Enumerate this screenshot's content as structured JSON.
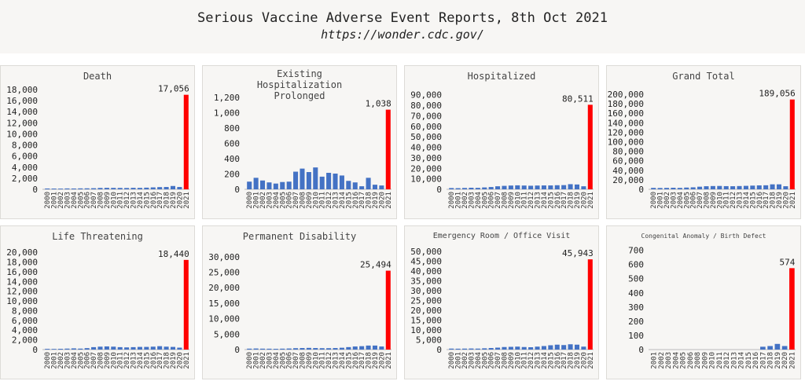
{
  "title": "Serious Vaccine Adverse Event Reports, 8th Oct 2021",
  "subtitle": "https://wonder.cdc.gov/",
  "colors": {
    "normal": "#4472c4",
    "highlight": "#ff0000",
    "panel_bg": "#f7f6f4"
  },
  "chart_data": [
    {
      "type": "bar",
      "title": [
        "Death"
      ],
      "categories": [
        "2000",
        "2001",
        "2002",
        "2003",
        "2004",
        "2005",
        "2006",
        "2007",
        "2008",
        "2009",
        "2010",
        "2011",
        "2012",
        "2013",
        "2014",
        "2015",
        "2016",
        "2017",
        "2018",
        "2019",
        "2020",
        "2021"
      ],
      "values": [
        150,
        140,
        130,
        160,
        150,
        170,
        180,
        200,
        250,
        270,
        260,
        250,
        240,
        270,
        260,
        300,
        350,
        400,
        420,
        600,
        420,
        17056
      ],
      "highlight_label": "17,056",
      "ylim": [
        0,
        18000
      ],
      "yticks": [
        0,
        2000,
        4000,
        6000,
        8000,
        10000,
        12000,
        14000,
        16000,
        18000
      ],
      "ytick_labels": [
        "0",
        "2,000",
        "4,000",
        "6,000",
        "8,000",
        "10,000",
        "12,000",
        "14,000",
        "16,000",
        "18,000"
      ]
    },
    {
      "type": "bar",
      "title": [
        "Existing",
        "Hospitalization",
        "Prolonged"
      ],
      "categories": [
        "2000",
        "2001",
        "2002",
        "2003",
        "2004",
        "2005",
        "2006",
        "2007",
        "2008",
        "2009",
        "2010",
        "2011",
        "2012",
        "2013",
        "2014",
        "2015",
        "2016",
        "2017",
        "2018",
        "2019",
        "2020",
        "2021"
      ],
      "values": [
        100,
        150,
        115,
        90,
        75,
        95,
        100,
        230,
        270,
        225,
        285,
        165,
        215,
        205,
        180,
        110,
        90,
        40,
        150,
        60,
        50,
        1038
      ],
      "highlight_label": "1,038",
      "ylim": [
        0,
        1300
      ],
      "yticks": [
        0,
        200,
        400,
        600,
        800,
        1000,
        1200
      ],
      "ytick_labels": [
        "0",
        "200",
        "400",
        "600",
        "800",
        "1,000",
        "1,200"
      ]
    },
    {
      "type": "bar",
      "title": [
        "Hospitalized"
      ],
      "categories": [
        "2000",
        "2001",
        "2002",
        "2003",
        "2004",
        "2005",
        "2006",
        "2007",
        "2008",
        "2009",
        "2010",
        "2011",
        "2012",
        "2013",
        "2014",
        "2015",
        "2016",
        "2017",
        "2018",
        "2019",
        "2020",
        "2021"
      ],
      "values": [
        1200,
        1100,
        1300,
        1500,
        1400,
        1800,
        2200,
        2900,
        3300,
        3600,
        3800,
        3600,
        3400,
        3600,
        3700,
        3700,
        3900,
        4000,
        4900,
        4600,
        2900,
        80511
      ],
      "highlight_label": "80,511",
      "ylim": [
        0,
        95000
      ],
      "yticks": [
        0,
        10000,
        20000,
        30000,
        40000,
        50000,
        60000,
        70000,
        80000,
        90000
      ],
      "ytick_labels": [
        "0",
        "10,000",
        "20,000",
        "30,000",
        "40,000",
        "50,000",
        "60,000",
        "70,000",
        "80,000",
        "90,000"
      ]
    },
    {
      "type": "bar",
      "title": [
        "Grand Total"
      ],
      "categories": [
        "2000",
        "2001",
        "2002",
        "2003",
        "2004",
        "2005",
        "2006",
        "2007",
        "2008",
        "2009",
        "2010",
        "2011",
        "2012",
        "2013",
        "2014",
        "2015",
        "2016",
        "2017",
        "2018",
        "2019",
        "2020",
        "2021"
      ],
      "values": [
        3000,
        2800,
        3000,
        3300,
        3000,
        3700,
        4200,
        5500,
        6500,
        6900,
        7100,
        6700,
        6500,
        6900,
        7300,
        7800,
        8300,
        8500,
        10500,
        10500,
        6500,
        189056
      ],
      "highlight_label": "189,056",
      "ylim": [
        0,
        210000
      ],
      "yticks": [
        0,
        20000,
        40000,
        60000,
        80000,
        100000,
        120000,
        140000,
        160000,
        180000,
        200000
      ],
      "ytick_labels": [
        "0",
        "20,000",
        "40,000",
        "60,000",
        "80,000",
        "100,000",
        "120,000",
        "140,000",
        "160,000",
        "180,000",
        "200,000"
      ]
    },
    {
      "type": "bar",
      "title": [
        "Life Threatening"
      ],
      "categories": [
        "2000",
        "2001",
        "2002",
        "2003",
        "2004",
        "2005",
        "2006",
        "2007",
        "2008",
        "2009",
        "2010",
        "2011",
        "2012",
        "2013",
        "2014",
        "2015",
        "2016",
        "2017",
        "2018",
        "2019",
        "2020",
        "2021"
      ],
      "values": [
        150,
        140,
        160,
        200,
        250,
        200,
        300,
        500,
        600,
        650,
        600,
        500,
        450,
        500,
        550,
        550,
        600,
        700,
        600,
        550,
        400,
        18440
      ],
      "highlight_label": "18,440",
      "ylim": [
        0,
        21000
      ],
      "yticks": [
        0,
        2000,
        4000,
        6000,
        8000,
        10000,
        12000,
        14000,
        16000,
        18000,
        20000
      ],
      "ytick_labels": [
        "0",
        "2,000",
        "4,000",
        "6,000",
        "8,000",
        "10,000",
        "12,000",
        "14,000",
        "16,000",
        "18,000",
        "20,000"
      ]
    },
    {
      "type": "bar",
      "title": [
        "Permanent Disability"
      ],
      "categories": [
        "2000",
        "2001",
        "2002",
        "2003",
        "2004",
        "2005",
        "2006",
        "2007",
        "2008",
        "2009",
        "2010",
        "2011",
        "2012",
        "2013",
        "2014",
        "2015",
        "2016",
        "2017",
        "2018",
        "2019",
        "2020",
        "2021"
      ],
      "values": [
        300,
        350,
        300,
        280,
        250,
        300,
        350,
        450,
        500,
        550,
        500,
        450,
        450,
        500,
        600,
        800,
        1000,
        1100,
        1300,
        1300,
        1000,
        25494
      ],
      "highlight_label": "25,494",
      "ylim": [
        0,
        33000
      ],
      "yticks": [
        0,
        5000,
        10000,
        15000,
        20000,
        25000,
        30000
      ],
      "ytick_labels": [
        "0",
        "5,000",
        "10,000",
        "15,000",
        "20,000",
        "25,000",
        "30,000"
      ]
    },
    {
      "type": "bar",
      "title": [
        "Emergency Room / Office Visit"
      ],
      "categories": [
        "2000",
        "2001",
        "2002",
        "2003",
        "2004",
        "2005",
        "2006",
        "2007",
        "2008",
        "2009",
        "2010",
        "2011",
        "2012",
        "2013",
        "2014",
        "2015",
        "2016",
        "2017",
        "2018",
        "2019",
        "2020",
        "2021"
      ],
      "values": [
        500,
        450,
        500,
        550,
        500,
        650,
        800,
        1000,
        1300,
        1400,
        1500,
        1300,
        1200,
        1500,
        1800,
        2200,
        2500,
        2300,
        2700,
        2500,
        1500,
        45943
      ],
      "highlight_label": "45,943",
      "ylim": [
        0,
        52000
      ],
      "yticks": [
        0,
        5000,
        10000,
        15000,
        20000,
        25000,
        30000,
        35000,
        40000,
        45000,
        50000
      ],
      "ytick_labels": [
        "0",
        "5,000",
        "10,000",
        "15,000",
        "20,000",
        "25,000",
        "30,000",
        "35,000",
        "40,000",
        "45,000",
        "50,000"
      ]
    },
    {
      "type": "bar",
      "title": [
        "Congenital Anomaly / Birth Defect"
      ],
      "categories": [
        "2001",
        "2002",
        "2003",
        "2004",
        "2005",
        "2006",
        "2008",
        "2009",
        "2010",
        "2011",
        "2012",
        "2013",
        "2014",
        "2015",
        "2016",
        "2017",
        "2018",
        "2019",
        "2020",
        "2021"
      ],
      "values": [
        0,
        0,
        0,
        0,
        0,
        0,
        0,
        0,
        0,
        0,
        0,
        0,
        0,
        0,
        0,
        20,
        25,
        40,
        25,
        574
      ],
      "highlight_label": "574",
      "ylim": [
        0,
        720
      ],
      "yticks": [
        0,
        100,
        200,
        300,
        400,
        500,
        600,
        700
      ],
      "ytick_labels": [
        "0",
        "100",
        "200",
        "300",
        "400",
        "500",
        "600",
        "700"
      ]
    }
  ]
}
